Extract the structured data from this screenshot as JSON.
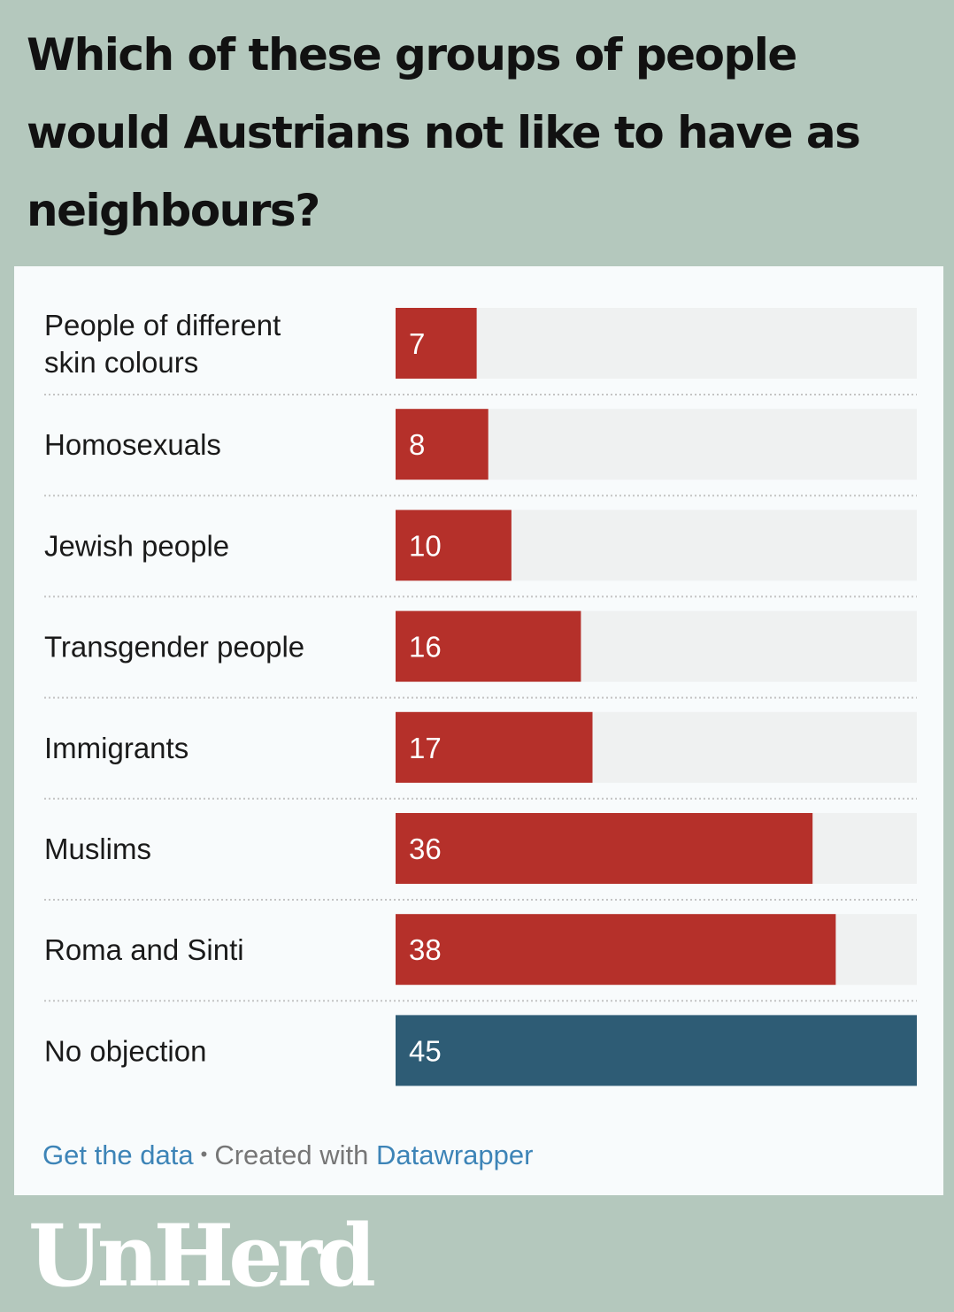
{
  "chart_data": {
    "type": "bar",
    "orientation": "horizontal",
    "title": "Which of these groups of people would Austrians not like to have as neighbours?",
    "categories": [
      "People of different skin colours",
      "Homosexuals",
      "Jewish people",
      "Transgender people",
      "Immigrants",
      "Muslims",
      "Roma and Sinti",
      "No objection"
    ],
    "values": [
      7,
      8,
      10,
      16,
      17,
      36,
      38,
      45
    ],
    "xlim": [
      0,
      45
    ],
    "colors": {
      "bar": "#b5302a",
      "highlight_bar": "#2e5c75",
      "track": "#eff1f1"
    },
    "highlight_category": "No objection",
    "grid": false
  },
  "footer": {
    "get_data": "Get the data",
    "separator": "•",
    "created_with": "Created with",
    "tool": "Datawrapper"
  },
  "brand": {
    "logo_text": "UnHerd"
  }
}
